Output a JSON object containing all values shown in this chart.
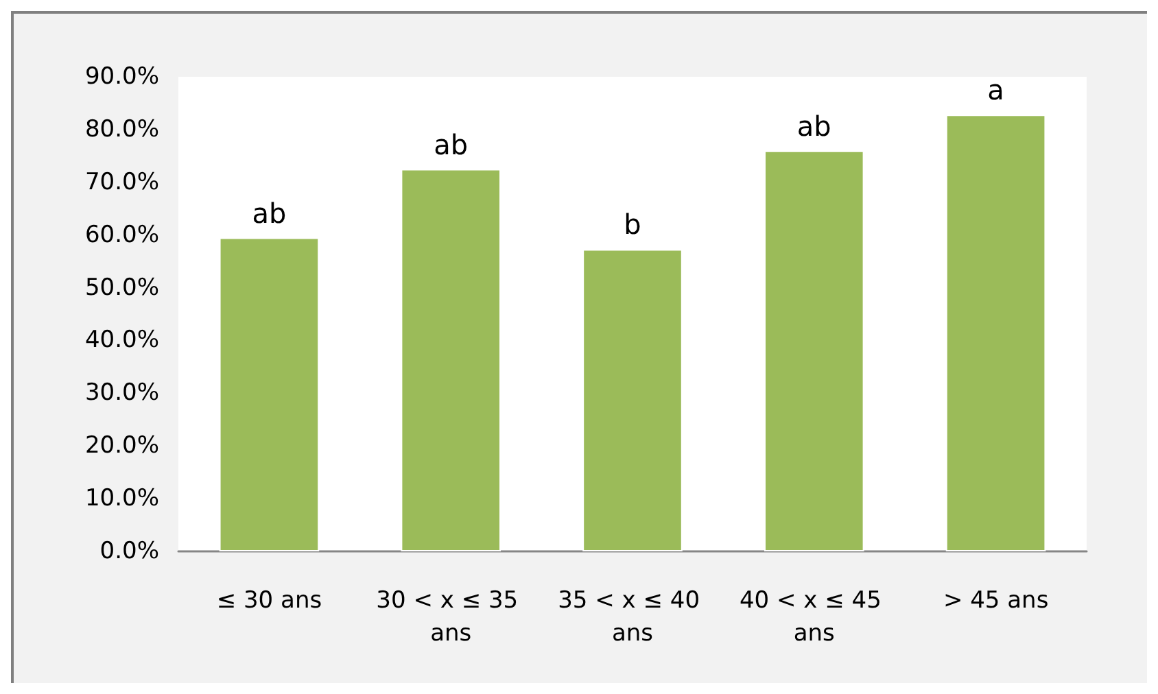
{
  "chart_data": {
    "type": "bar",
    "categories": [
      "≤ 30 ans",
      "30 < x ≤ 35 ans",
      "35 < x ≤ 40 ans",
      "40 < x ≤ 45 ans",
      "> 45 ans"
    ],
    "values": [
      59.5,
      72.5,
      57.3,
      76.0,
      82.8
    ],
    "color": "#9bbb59",
    "value_labels": [
      "ab",
      "ab",
      "b",
      "ab",
      "a"
    ],
    "ylim": [
      0,
      90
    ],
    "yticks": [
      {
        "value": 0,
        "label": "0.0%"
      },
      {
        "value": 10,
        "label": "10.0%"
      },
      {
        "value": 20,
        "label": "20.0%"
      },
      {
        "value": 30,
        "label": "30.0%"
      },
      {
        "value": 40,
        "label": "40.0%"
      },
      {
        "value": 50,
        "label": "50.0%"
      },
      {
        "value": 60,
        "label": "60.0%"
      },
      {
        "value": 70,
        "label": "70.0%"
      },
      {
        "value": 80,
        "label": "80.0%"
      },
      {
        "value": 90,
        "label": "90.0%"
      }
    ],
    "grid": false
  }
}
